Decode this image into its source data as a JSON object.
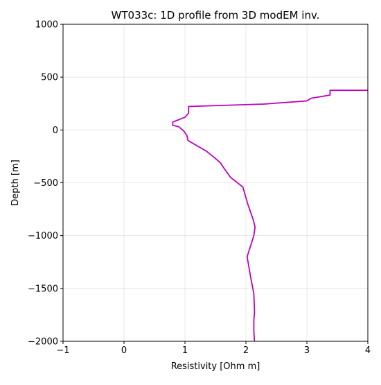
{
  "chart_data": {
    "type": "line",
    "title": "WT033c: 1D profile from 3D modEM inv.",
    "xlabel": "Resistivity [Ohm m]",
    "ylabel": "Depth [m]",
    "xlim": [
      -1,
      4
    ],
    "ylim": [
      -2000,
      1000
    ],
    "xticks": [
      -1,
      0,
      1,
      2,
      3,
      4
    ],
    "yticks": [
      1000,
      500,
      0,
      -500,
      -1000,
      -1500,
      -2000
    ],
    "xtick_labels": [
      "−1",
      "0",
      "1",
      "2",
      "3",
      "4"
    ],
    "ytick_labels": [
      "1000",
      "500",
      "0",
      "−500",
      "−1000",
      "−1500",
      "−2000"
    ],
    "grid": true,
    "series": [
      {
        "color": "#bf00bf",
        "x": [
          4.0,
          3.38,
          3.38,
          3.07,
          3.0,
          2.3,
          1.06,
          1.06,
          1.0,
          0.8,
          0.8,
          0.9,
          0.98,
          1.03,
          1.05,
          1.2,
          1.35,
          1.48,
          1.58,
          1.65,
          1.75,
          1.95,
          2.03,
          2.12,
          2.15,
          2.13,
          2.02,
          2.08,
          2.13,
          2.14,
          2.14,
          2.13,
          2.13,
          2.14
        ],
        "y": [
          375,
          375,
          330,
          300,
          275,
          245,
          222,
          160,
          120,
          75,
          45,
          30,
          -10,
          -50,
          -100,
          -150,
          -200,
          -260,
          -310,
          -370,
          -450,
          -540,
          -700,
          -850,
          -920,
          -1000,
          -1200,
          -1400,
          -1550,
          -1700,
          -1730,
          -1800,
          -1900,
          -2000
        ]
      }
    ]
  }
}
